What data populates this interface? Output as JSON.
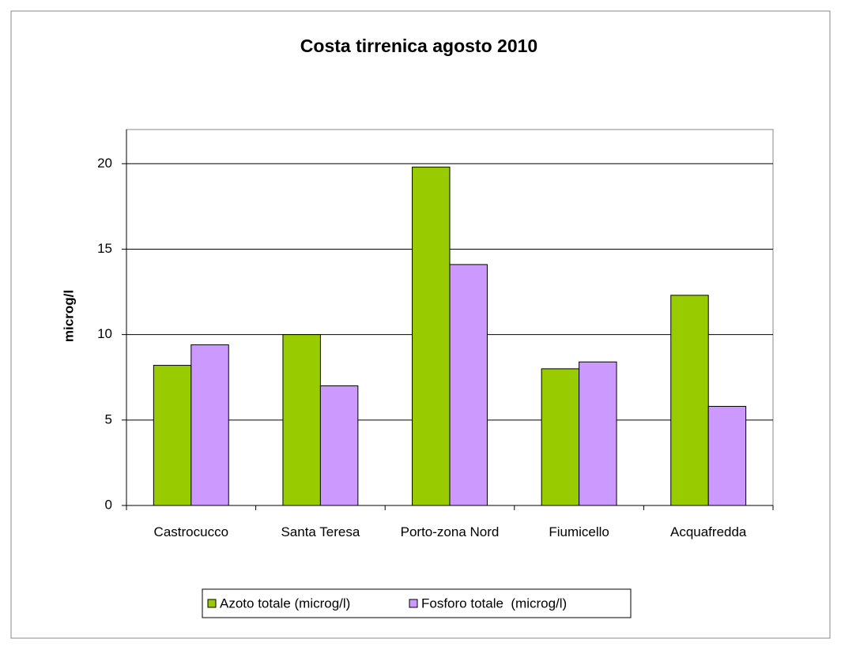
{
  "chart_data": {
    "type": "bar",
    "title": "Costa tirrenica agosto 2010",
    "ylabel": "microg/l",
    "categories": [
      "Castrocucco",
      "Santa Teresa",
      "Porto-zona Nord",
      "Fiumicello",
      "Acquafredda"
    ],
    "series": [
      {
        "name": "Azoto totale (microg/l)",
        "color": "#99cc00",
        "values": [
          8.2,
          10.0,
          19.8,
          8.0,
          12.3
        ]
      },
      {
        "name": "Fosforo totale  (microg/l)",
        "color": "#cc99ff",
        "values": [
          9.4,
          7.0,
          14.1,
          8.4,
          5.8
        ]
      }
    ],
    "ylim": [
      0,
      22
    ],
    "yticks": [
      0,
      5,
      10,
      15,
      20
    ],
    "grid": true,
    "legend": "bottom"
  }
}
